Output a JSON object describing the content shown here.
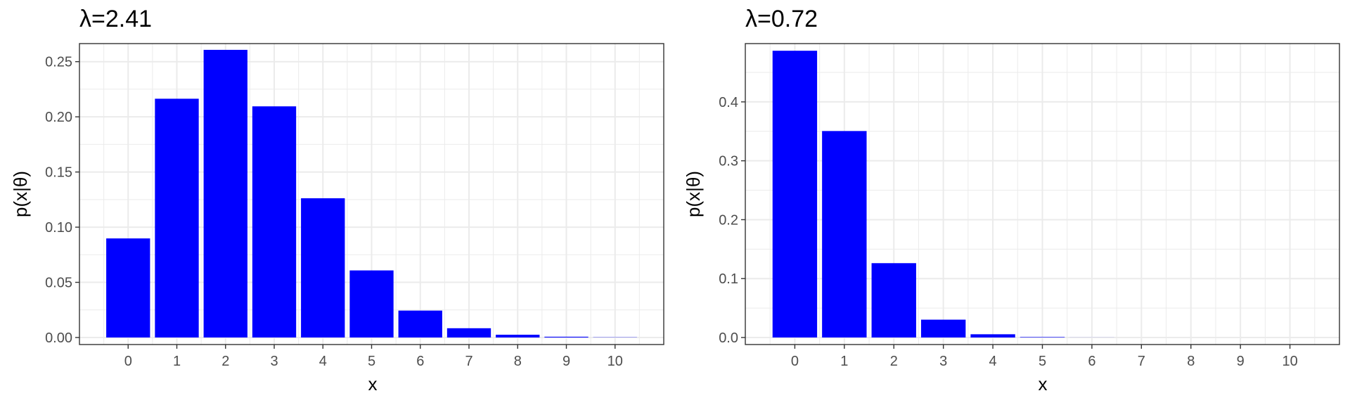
{
  "colors": {
    "bar": "#0000ff",
    "panel_bg": "#ffffff",
    "grid": "#ebebeb",
    "frame": "#333333"
  },
  "chart_data": [
    {
      "type": "bar",
      "title": "λ=2.41",
      "xlabel": "x",
      "ylabel": "p(x|θ)",
      "categories": [
        "0",
        "1",
        "2",
        "3",
        "4",
        "5",
        "6",
        "7",
        "8",
        "9",
        "10"
      ],
      "values": [
        0.0898,
        0.2164,
        0.2607,
        0.2095,
        0.1262,
        0.0608,
        0.0244,
        0.0084,
        0.0025,
        0.0007,
        0.0002
      ],
      "ylim": [
        0,
        0.26
      ],
      "yticks": [
        0,
        0.05,
        0.1,
        0.15,
        0.2,
        0.25
      ],
      "ytick_labels": [
        "0.00",
        "0.05",
        "0.10",
        "0.15",
        "0.20",
        "0.25"
      ],
      "grid": true
    },
    {
      "type": "bar",
      "title": "λ=0.72",
      "xlabel": "x",
      "ylabel": "p(x|θ)",
      "categories": [
        "0",
        "1",
        "2",
        "3",
        "4",
        "5",
        "6",
        "7",
        "8",
        "9",
        "10"
      ],
      "values": [
        0.4868,
        0.3505,
        0.1262,
        0.0303,
        0.0055,
        0.0008,
        0.0001,
        0.0,
        0.0,
        0.0,
        0.0
      ],
      "ylim": [
        0,
        0.487
      ],
      "yticks": [
        0,
        0.1,
        0.2,
        0.3,
        0.4
      ],
      "ytick_labels": [
        "0.0",
        "0.1",
        "0.2",
        "0.3",
        "0.4"
      ],
      "grid": true
    }
  ]
}
